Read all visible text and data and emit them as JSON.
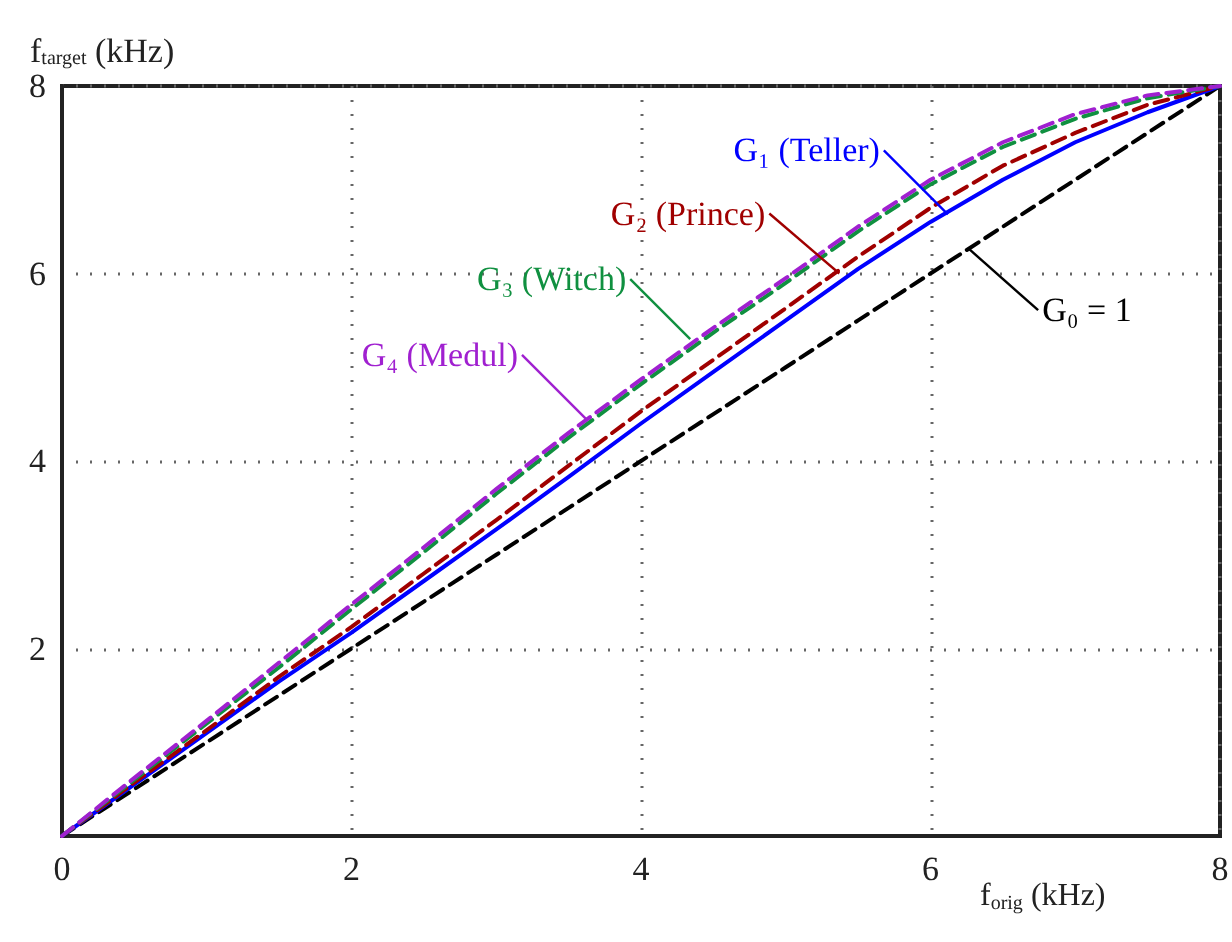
{
  "chart_data": {
    "type": "line",
    "xlabel": "f$_{orig}$ (kHz)",
    "ylabel": "f$_{target}$ (kHz)",
    "x": [
      0,
      0.5,
      1,
      1.5,
      2,
      2.5,
      3,
      3.5,
      4,
      4.5,
      5,
      5.5,
      6,
      6.5,
      7,
      7.5,
      8
    ],
    "series": [
      {
        "color": "#000000",
        "line_style": "dashed",
        "values": [
          0,
          0.5,
          1,
          1.5,
          2,
          2.5,
          3,
          3.5,
          4,
          4.5,
          5,
          5.5,
          6,
          6.5,
          7,
          7.5,
          8
        ]
      },
      {
        "color": "#0000ff",
        "line_style": "solid",
        "values": [
          0,
          0.55,
          1.1,
          1.65,
          2.17,
          2.72,
          3.27,
          3.83,
          4.4,
          4.95,
          5.5,
          6.05,
          6.55,
          7.0,
          7.4,
          7.72,
          8
        ]
      },
      {
        "color": "#a00000",
        "line_style": "dashed",
        "values": [
          0,
          0.57,
          1.13,
          1.7,
          2.23,
          2.8,
          3.37,
          3.95,
          4.53,
          5.08,
          5.63,
          6.18,
          6.7,
          7.15,
          7.5,
          7.8,
          8
        ]
      },
      {
        "color": "#109040",
        "line_style": "dashed",
        "values": [
          0,
          0.6,
          1.2,
          1.8,
          2.42,
          3.03,
          3.65,
          4.25,
          4.82,
          5.37,
          5.9,
          6.45,
          6.95,
          7.35,
          7.65,
          7.87,
          8
        ]
      },
      {
        "color": "#a020d0",
        "line_style": "dashed",
        "values": [
          0,
          0.62,
          1.23,
          1.85,
          2.47,
          3.08,
          3.7,
          4.3,
          4.87,
          5.42,
          5.95,
          6.5,
          7.0,
          7.4,
          7.7,
          7.9,
          8
        ]
      }
    ],
    "annotations": [
      {
        "text": "G₀ = 1",
        "x": 6.26,
        "y": 6.27
      },
      {
        "text": "G₁ (Teller)",
        "x": 6.12,
        "y": 6.63
      },
      {
        "text": "G₂ (Prince)",
        "x": 5.37,
        "y": 6.0
      },
      {
        "text": "G₃ (Witch)",
        "x": 4.34,
        "y": 5.3
      },
      {
        "text": "G₄ (Medul)",
        "x": 3.62,
        "y": 4.45
      }
    ],
    "xlim": [
      0,
      8
    ],
    "ylim": [
      0,
      8
    ],
    "xticks": [
      0,
      2,
      4,
      6,
      8
    ],
    "yticks": [
      2,
      4,
      6,
      8
    ],
    "grid": true,
    "marker": "none"
  }
}
